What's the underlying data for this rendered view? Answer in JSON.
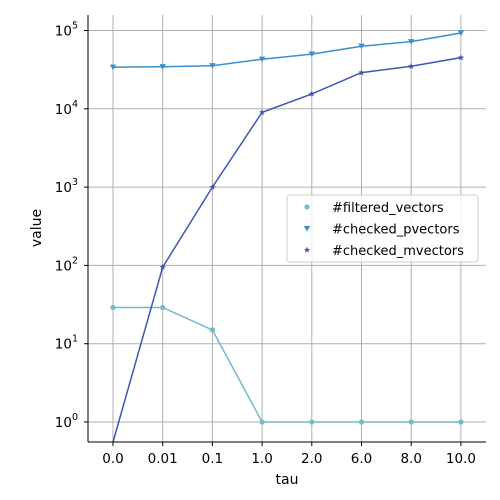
{
  "chart_data": {
    "type": "line",
    "title": "",
    "xlabel": "tau",
    "ylabel": "value",
    "yscale": "log",
    "grid": true,
    "legend_position": "center-right",
    "categories": [
      "0.0",
      "0.01",
      "0.1",
      "1.0",
      "2.0",
      "6.0",
      "8.0",
      "10.0"
    ],
    "y_ticks": [
      {
        "value": 1,
        "base": "10",
        "exp": "0"
      },
      {
        "value": 10,
        "base": "10",
        "exp": "1"
      },
      {
        "value": 100,
        "base": "10",
        "exp": "2"
      },
      {
        "value": 1000,
        "base": "10",
        "exp": "3"
      },
      {
        "value": 10000,
        "base": "10",
        "exp": "4"
      },
      {
        "value": 100000,
        "base": "10",
        "exp": "5"
      }
    ],
    "series": [
      {
        "name": "#filtered_vectors",
        "color": "#74b9cc",
        "marker": "circle",
        "values": [
          29,
          29,
          15,
          1,
          1,
          1,
          1,
          1
        ]
      },
      {
        "name": "#checked_pvectors",
        "color": "#3a8fcb",
        "marker": "triangle-down",
        "values": [
          34000,
          34500,
          35500,
          43000,
          50000,
          63000,
          72000,
          93000
        ]
      },
      {
        "name": "#checked_mvectors",
        "color": "#3d56b5",
        "marker": "star",
        "values": [
          0,
          95,
          1000,
          9000,
          15500,
          29000,
          35000,
          45000
        ]
      }
    ]
  }
}
